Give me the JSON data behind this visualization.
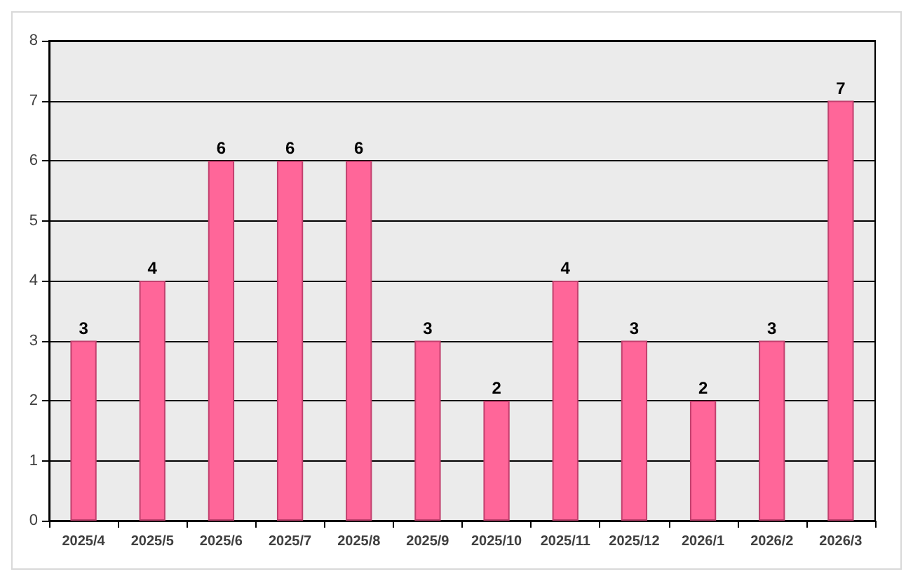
{
  "chart_data": {
    "type": "bar",
    "categories": [
      "2025/4",
      "2025/5",
      "2025/6",
      "2025/7",
      "2025/8",
      "2025/9",
      "2025/10",
      "2025/11",
      "2025/12",
      "2026/1",
      "2026/2",
      "2026/3"
    ],
    "values": [
      3,
      4,
      6,
      6,
      6,
      3,
      2,
      4,
      3,
      2,
      3,
      7
    ],
    "color": "#ff6699",
    "ylim": [
      0,
      8
    ],
    "yticks": [
      0,
      1,
      2,
      3,
      4,
      5,
      6,
      7,
      8
    ],
    "grid": "y",
    "data_labels": true
  }
}
